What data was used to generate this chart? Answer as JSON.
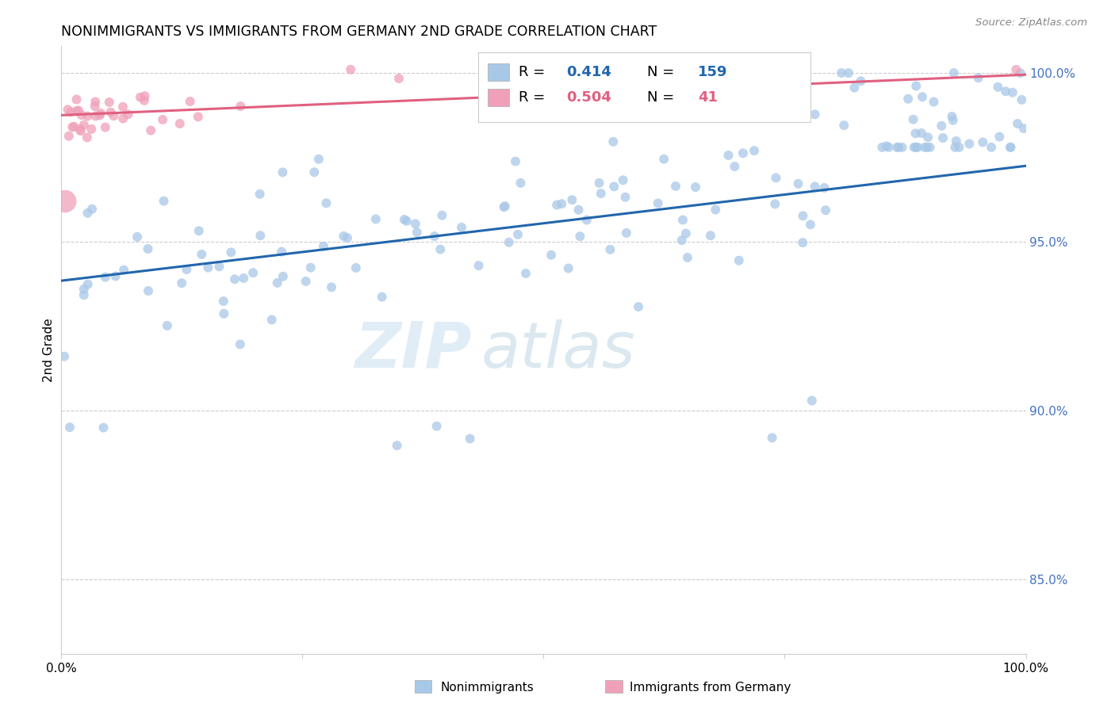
{
  "title": "NONIMMIGRANTS VS IMMIGRANTS FROM GERMANY 2ND GRADE CORRELATION CHART",
  "source": "Source: ZipAtlas.com",
  "ylabel": "2nd Grade",
  "ylabel_right_labels": [
    "100.0%",
    "95.0%",
    "90.0%",
    "85.0%"
  ],
  "ylabel_right_values": [
    1.0,
    0.95,
    0.9,
    0.85
  ],
  "xlim": [
    0.0,
    1.0
  ],
  "ylim": [
    0.828,
    1.008
  ],
  "blue_color": "#a8c8e8",
  "pink_color": "#f0a0b8",
  "blue_line_color": "#2166ac",
  "pink_line_color": "#e06080",
  "legend_R_blue": "0.414",
  "legend_N_blue": "159",
  "legend_R_pink": "0.504",
  "legend_N_pink": "41",
  "background_color": "#ffffff",
  "grid_color": "#cccccc",
  "right_axis_color": "#4472c4",
  "watermark_zip": "ZIP",
  "watermark_atlas": "atlas",
  "blue_line_x0": 0.0,
  "blue_line_y0": 0.9385,
  "blue_line_x1": 1.0,
  "blue_line_y1": 0.9725,
  "pink_line_x0": 0.0,
  "pink_line_y0": 0.9875,
  "pink_line_x1": 1.0,
  "pink_line_y1": 0.9995
}
